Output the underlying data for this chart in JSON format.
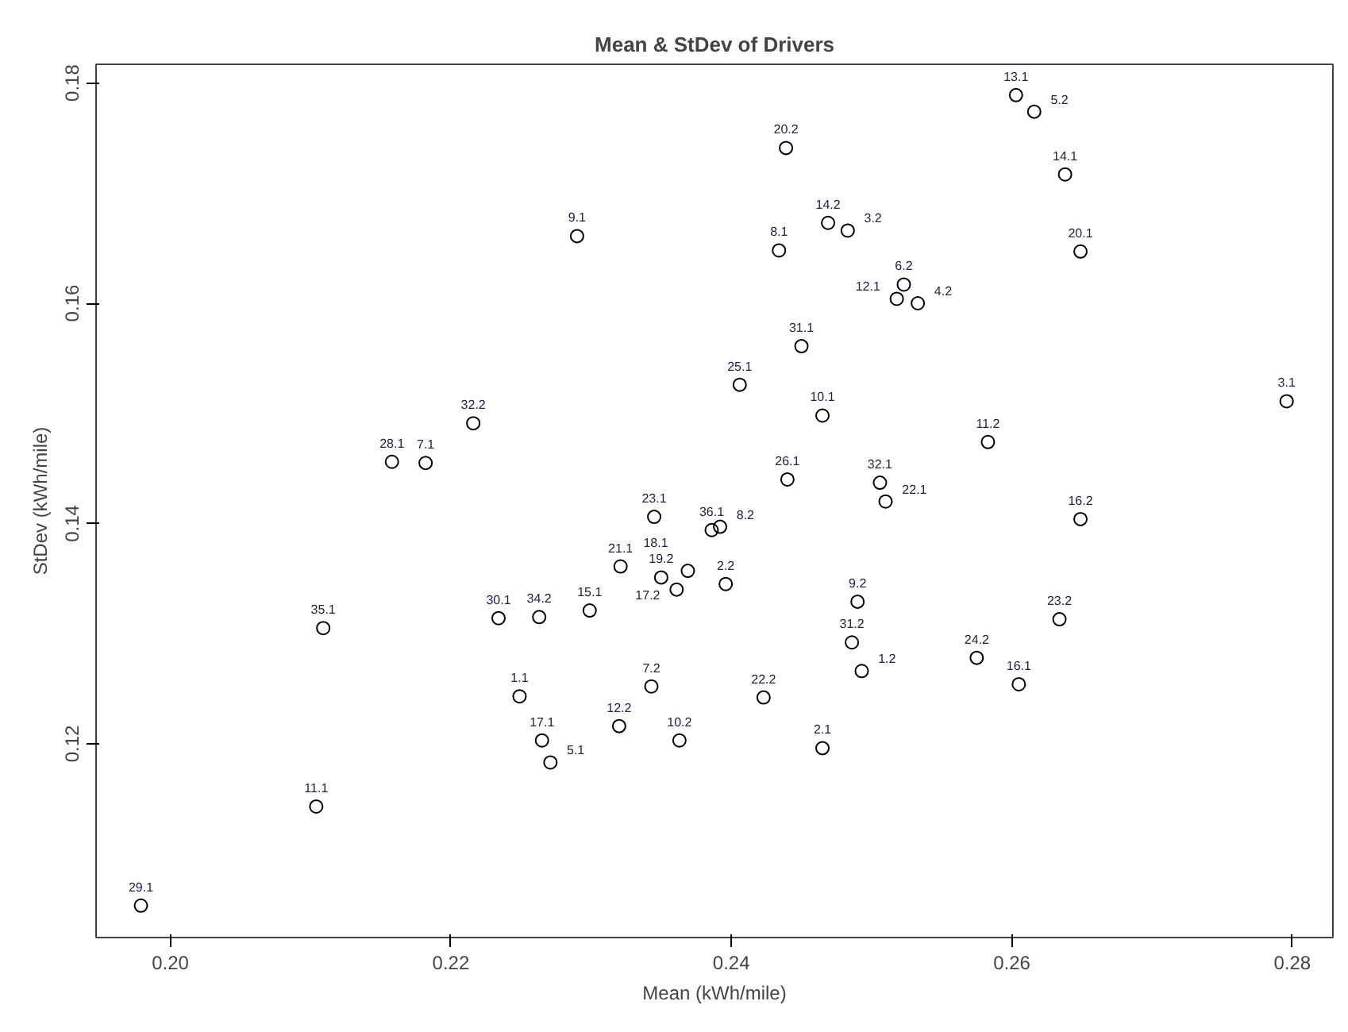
{
  "chart_data": {
    "type": "scatter",
    "title": "Mean & StDev of Drivers",
    "xlabel": "Mean (kWh/mile)",
    "ylabel": "StDev (kWh/mile)",
    "xlim": [
      0.1947,
      0.2829
    ],
    "ylim": [
      0.1024,
      0.1817
    ],
    "xticks": [
      {
        "value": 0.2,
        "label": "0.20"
      },
      0.22,
      0.24,
      0.26,
      0.28
    ],
    "yticks": [
      {
        "value": 0.12,
        "label": "0.12"
      },
      0.14,
      0.16,
      0.18
    ],
    "grid": false,
    "marker": "circle",
    "series": [
      {
        "color": "#000000",
        "x": [
          0.229,
          0.2216,
          0.2158,
          0.2182,
          0.2603,
          0.2616,
          0.2439,
          0.2638,
          0.2469,
          0.2483,
          0.2434,
          0.2649,
          0.2523,
          0.2518,
          0.2533,
          0.245,
          0.2406,
          0.2465,
          0.2796,
          0.2583,
          0.244,
          0.2506,
          0.251,
          0.2649,
          0.2386,
          0.2392,
          0.2396,
          0.249,
          0.2634,
          0.2486,
          0.2575,
          0.2493,
          0.2605,
          0.2423,
          0.2465,
          0.2345,
          0.2321,
          0.235,
          0.2369,
          0.2361,
          0.2299,
          0.2234,
          0.2263,
          0.2109,
          0.2249,
          0.2343,
          0.232,
          0.2265,
          0.2271,
          0.2363,
          0.2104,
          0.1979
        ],
        "values": [
          0.1661,
          0.1491,
          0.1456,
          0.1455,
          0.1789,
          0.1774,
          0.1741,
          0.1717,
          0.1673,
          0.1666,
          0.1648,
          0.1647,
          0.1617,
          0.1604,
          0.16,
          0.1561,
          0.1526,
          0.1498,
          0.1511,
          0.1474,
          0.144,
          0.1437,
          0.142,
          0.1404,
          0.1394,
          0.1397,
          0.1345,
          0.1329,
          0.1313,
          0.1292,
          0.1278,
          0.1266,
          0.1254,
          0.1242,
          0.1196,
          0.1406,
          0.1361,
          0.1351,
          0.1357,
          0.134,
          0.1321,
          0.1314,
          0.1315,
          0.1305,
          0.1243,
          0.1252,
          0.1216,
          0.1203,
          0.1183,
          0.1203,
          0.1143,
          0.1053
        ]
      }
    ],
    "annotations": [
      {
        "text": "9.1",
        "x": 0.229,
        "y": 0.1661
      },
      {
        "text": "32.2",
        "x": 0.2216,
        "y": 0.1491
      },
      {
        "text": "28.1",
        "x": 0.2158,
        "y": 0.1456
      },
      {
        "text": "7.1",
        "x": 0.2182,
        "y": 0.1455
      },
      {
        "text": "13.1",
        "x": 0.2603,
        "y": 0.1789
      },
      {
        "text": "5.2",
        "x": 0.2616,
        "y": 0.1774
      },
      {
        "text": "20.2",
        "x": 0.2439,
        "y": 0.1741
      },
      {
        "text": "14.1",
        "x": 0.2638,
        "y": 0.1717
      },
      {
        "text": "14.2",
        "x": 0.2469,
        "y": 0.1673
      },
      {
        "text": "3.2",
        "x": 0.2483,
        "y": 0.1666
      },
      {
        "text": "8.1",
        "x": 0.2434,
        "y": 0.1648
      },
      {
        "text": "20.1",
        "x": 0.2649,
        "y": 0.1647
      },
      {
        "text": "6.2",
        "x": 0.2523,
        "y": 0.1617
      },
      {
        "text": "12.1",
        "x": 0.2518,
        "y": 0.1604
      },
      {
        "text": "4.2",
        "x": 0.2533,
        "y": 0.16
      },
      {
        "text": "31.1",
        "x": 0.245,
        "y": 0.1561
      },
      {
        "text": "25.1",
        "x": 0.2406,
        "y": 0.1526
      },
      {
        "text": "10.1",
        "x": 0.2465,
        "y": 0.1498
      },
      {
        "text": "3.1",
        "x": 0.2796,
        "y": 0.1511
      },
      {
        "text": "11.2",
        "x": 0.2583,
        "y": 0.1474
      },
      {
        "text": "26.1",
        "x": 0.244,
        "y": 0.144
      },
      {
        "text": "32.1",
        "x": 0.2506,
        "y": 0.1437
      },
      {
        "text": "22.1",
        "x": 0.251,
        "y": 0.142
      },
      {
        "text": "16.2",
        "x": 0.2649,
        "y": 0.1404
      },
      {
        "text": "36.1",
        "x": 0.2386,
        "y": 0.1394
      },
      {
        "text": "8.2",
        "x": 0.2392,
        "y": 0.1397
      },
      {
        "text": "2.2",
        "x": 0.2396,
        "y": 0.1345
      },
      {
        "text": "9.2",
        "x": 0.249,
        "y": 0.1329
      },
      {
        "text": "23.2",
        "x": 0.2634,
        "y": 0.1313
      },
      {
        "text": "31.2",
        "x": 0.2486,
        "y": 0.1292
      },
      {
        "text": "24.2",
        "x": 0.2575,
        "y": 0.1278
      },
      {
        "text": "1.2",
        "x": 0.2493,
        "y": 0.1266
      },
      {
        "text": "16.1",
        "x": 0.2605,
        "y": 0.1254
      },
      {
        "text": "22.2",
        "x": 0.2423,
        "y": 0.1242
      },
      {
        "text": "2.1",
        "x": 0.2465,
        "y": 0.1196
      },
      {
        "text": "23.1",
        "x": 0.2345,
        "y": 0.1406
      },
      {
        "text": "21.1",
        "x": 0.2321,
        "y": 0.1361
      },
      {
        "text": "19.2",
        "x": 0.235,
        "y": 0.1351
      },
      {
        "text": "18.1",
        "x": 0.2369,
        "y": 0.1357
      },
      {
        "text": "17.2",
        "x": 0.2361,
        "y": 0.134
      },
      {
        "text": "15.1",
        "x": 0.2299,
        "y": 0.1321
      },
      {
        "text": "30.1",
        "x": 0.2234,
        "y": 0.1314
      },
      {
        "text": "34.2",
        "x": 0.2263,
        "y": 0.1315
      },
      {
        "text": "35.1",
        "x": 0.2109,
        "y": 0.1305
      },
      {
        "text": "1.1",
        "x": 0.2249,
        "y": 0.1243
      },
      {
        "text": "7.2",
        "x": 0.2343,
        "y": 0.1252
      },
      {
        "text": "12.2",
        "x": 0.232,
        "y": 0.1216
      },
      {
        "text": "17.1",
        "x": 0.2265,
        "y": 0.1203
      },
      {
        "text": "5.1",
        "x": 0.2271,
        "y": 0.1183
      },
      {
        "text": "10.2",
        "x": 0.2363,
        "y": 0.1203
      },
      {
        "text": "11.1",
        "x": 0.2104,
        "y": 0.1143
      },
      {
        "text": "29.1",
        "x": 0.1979,
        "y": 0.1053
      }
    ]
  }
}
